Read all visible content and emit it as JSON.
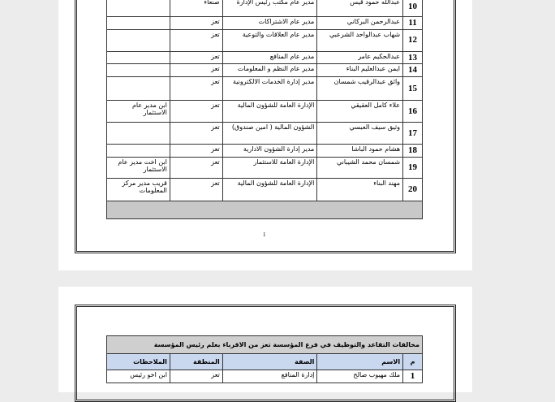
{
  "page1": {
    "rows": [
      {
        "num": "10",
        "name": "عبدالله حمود قيس",
        "position": "مدير عام مكتب رئيس الإدارة",
        "region": "صنعاء",
        "notes": ""
      },
      {
        "num": "11",
        "name": "عبدالرحمن البركاني",
        "position": "مدير عام الاشتراكات",
        "region": "تعز",
        "notes": ""
      },
      {
        "num": "12",
        "name": "شهاب عبدالواحد الشرعبي",
        "position": "مدير عام العلاقات والتوعية",
        "region": "تعز",
        "notes": ""
      },
      {
        "num": "13",
        "name": "عبدالحكيم عامر",
        "position": "مدير عام المنافع",
        "region": "تعز",
        "notes": ""
      },
      {
        "num": "14",
        "name": "ايمن عبدالعليم البناء",
        "position": "مدير عام النظم و المعلومات",
        "region": "تعز",
        "notes": ""
      },
      {
        "num": "15",
        "name": "وائق عبدالرقيب شمسان",
        "position": "مدير إدارة الخدمات الالكترونية",
        "region": "تعز",
        "notes": ""
      },
      {
        "num": "16",
        "name": "علاء كامل العقيقي",
        "position": "الإدارة العامة للشؤون المالية",
        "region": "تعز",
        "notes": "ابن مدير عام الاستثمار"
      },
      {
        "num": "17",
        "name": "وثيق سيف العبسي",
        "position": "الشؤون المالية ( امين صندوق)",
        "region": "تعز",
        "notes": ""
      },
      {
        "num": "18",
        "name": "هشام حمود الباشا",
        "position": "مدير إدارة الشؤون الادارية",
        "region": "تعز",
        "notes": ""
      },
      {
        "num": "19",
        "name": "شمسان محمد الشيباني",
        "position": "الإدارة العامة للاستثمار",
        "region": "تعز",
        "notes": "ابن اخت مدير عام الاستثمار"
      },
      {
        "num": "20",
        "name": "مهند البناء",
        "position": "الإدارة العامة للشؤون المالية",
        "region": "تعز",
        "notes": "قريب مدير مركز المعلومات"
      }
    ],
    "page_number": "1"
  },
  "page2": {
    "title": "مخالفات التقاعد والتوظيف في فرع المؤسسة تعز من الاقرباء بعلم رئيس المؤسسة",
    "headers": {
      "num": "م",
      "name": "الاسم",
      "position": "الصفة",
      "region": "المنطقة",
      "notes": "الملاحظات"
    },
    "rows": [
      {
        "num": "1",
        "name": "ملك مهيوب صالح",
        "position": "إدارة المنافع",
        "region": "تعز",
        "notes": "ابن اخو رئيس"
      }
    ]
  }
}
